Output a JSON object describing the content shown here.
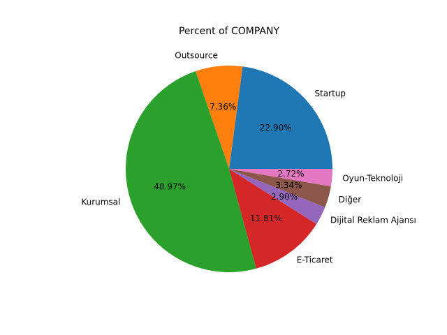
{
  "chart_data": {
    "type": "pie",
    "title": "Percent of COMPANY",
    "categories": [
      "Startup",
      "Outsource",
      "Kurumsal",
      "E-Ticaret",
      "Dijital Reklam Ajansı",
      "Diğer",
      "Oyun-Teknoloji"
    ],
    "values": [
      22.9,
      7.36,
      48.97,
      11.81,
      2.9,
      3.34,
      2.72
    ],
    "value_labels": [
      "22.90%",
      "7.36%",
      "48.97%",
      "11.81%",
      "2.90%",
      "3.34%",
      "2.72%"
    ],
    "colors": [
      "#1f77b4",
      "#ff7f0e",
      "#2ca02c",
      "#d62728",
      "#9467bd",
      "#8c564b",
      "#e377c2"
    ],
    "start_angle_deg": 0,
    "direction": "counterclockwise"
  }
}
